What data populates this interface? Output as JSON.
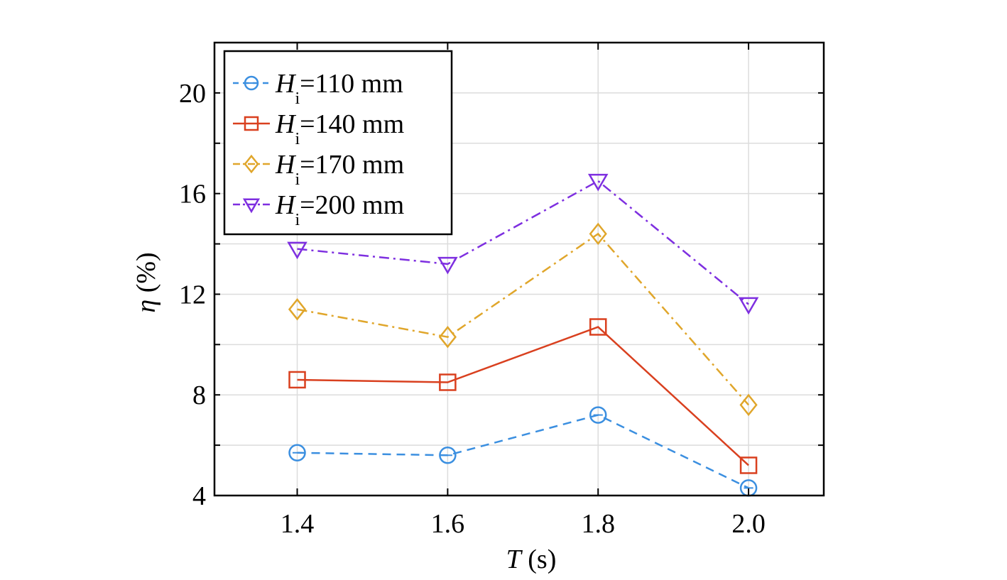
{
  "chart_data": {
    "type": "line",
    "x": [
      1.4,
      1.6,
      1.8,
      2.0
    ],
    "x_tick_labels": [
      "1.4",
      "1.6",
      "1.8",
      "2.0"
    ],
    "xlim": [
      1.29,
      2.1
    ],
    "ylim": [
      4,
      22
    ],
    "y_ticks": [
      4,
      8,
      12,
      16,
      20
    ],
    "y_tick_labels": [
      "4",
      "8",
      "12",
      "16",
      "20"
    ],
    "grid": true,
    "xlabel": {
      "symbol": "T",
      "unit": " (s)"
    },
    "ylabel": {
      "symbol": "η",
      "unit": " (%)"
    },
    "legend_position": "top-left",
    "series": [
      {
        "symbol": "H",
        "subscript": "i",
        "value": "=110 mm",
        "color": "#3b8fe0",
        "marker": "circle",
        "dash": "dashed",
        "values": [
          5.7,
          5.6,
          7.2,
          4.3
        ]
      },
      {
        "symbol": "H",
        "subscript": "i",
        "value": "=140 mm",
        "color": "#d9401f",
        "marker": "square",
        "dash": "solid",
        "values": [
          8.6,
          8.5,
          10.7,
          5.2
        ]
      },
      {
        "symbol": "H",
        "subscript": "i",
        "value": "=170 mm",
        "color": "#e0a62b",
        "marker": "diamond",
        "dash": "dashdot",
        "values": [
          11.4,
          10.3,
          14.4,
          7.6
        ]
      },
      {
        "symbol": "H",
        "subscript": "i",
        "value": "=200 mm",
        "color": "#7e2fe0",
        "marker": "triangle-down",
        "dash": "dashdot",
        "values": [
          13.8,
          13.2,
          16.5,
          11.6
        ]
      }
    ]
  }
}
